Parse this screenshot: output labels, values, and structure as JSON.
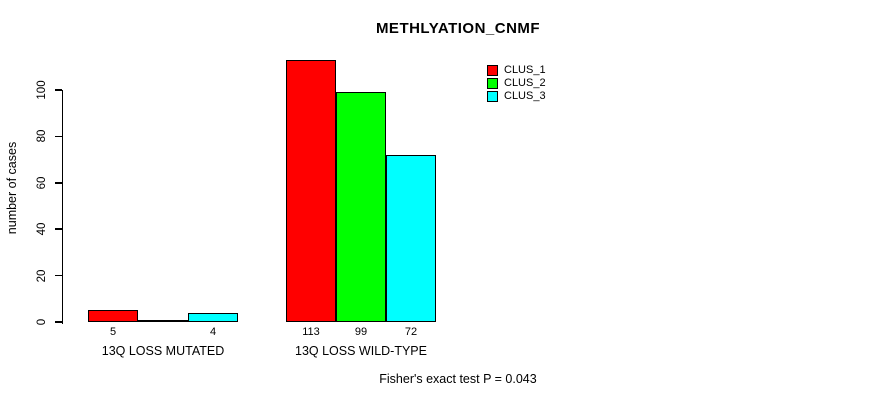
{
  "chart_data": {
    "type": "bar",
    "title": "METHLYATION_CNMF",
    "ylabel": "number of cases",
    "xlabel": "",
    "categories": [
      "13Q LOSS MUTATED",
      "13Q LOSS WILD-TYPE"
    ],
    "series": [
      {
        "name": "CLUS_1",
        "color": "#ff0000",
        "values": [
          5,
          113
        ]
      },
      {
        "name": "CLUS_2",
        "color": "#00ff00",
        "values": [
          0,
          99
        ]
      },
      {
        "name": "CLUS_3",
        "color": "#00ffff",
        "values": [
          4,
          72
        ]
      }
    ],
    "bar_labels": [
      [
        "5",
        "",
        "4"
      ],
      [
        "113",
        "99",
        "72"
      ]
    ],
    "yticks": [
      0,
      20,
      40,
      60,
      80,
      100
    ],
    "ylim": [
      0,
      116
    ],
    "grid": false,
    "legend_position": "top-right",
    "annotation": "Fisher's exact test P = 0.043"
  }
}
